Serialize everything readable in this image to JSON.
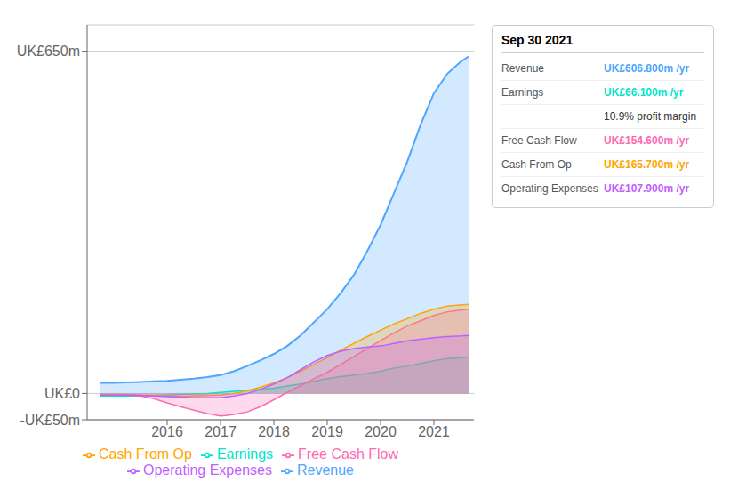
{
  "chart_data": {
    "type": "area",
    "title": "Sep 30 2021",
    "x": [
      2014.75,
      2015.0,
      2015.25,
      2015.5,
      2015.75,
      2016.0,
      2016.25,
      2016.5,
      2016.75,
      2017.0,
      2017.25,
      2017.5,
      2017.75,
      2018.0,
      2018.25,
      2018.5,
      2018.75,
      2019.0,
      2019.25,
      2019.5,
      2019.75,
      2020.0,
      2020.25,
      2020.5,
      2020.75,
      2021.0,
      2021.25,
      2021.5,
      2021.65
    ],
    "series": [
      {
        "name": "Revenue",
        "color": "#4da6ff",
        "values": [
          20,
          20,
          21,
          22,
          23,
          24,
          26,
          28,
          31,
          35,
          42,
          52,
          63,
          75,
          90,
          110,
          135,
          160,
          190,
          225,
          270,
          320,
          380,
          440,
          510,
          570,
          607,
          630,
          640
        ]
      },
      {
        "name": "Earnings",
        "color": "#00e5cc",
        "values": [
          -5,
          -5,
          -5,
          -5,
          -4,
          -3,
          -2,
          -1,
          0,
          2,
          4,
          6,
          8,
          10,
          14,
          18,
          23,
          28,
          32,
          35,
          38,
          42,
          48,
          52,
          57,
          62,
          66,
          68,
          69
        ]
      },
      {
        "name": "Free Cash Flow",
        "color": "#ff69b4",
        "values": [
          -2,
          -2,
          -3,
          -5,
          -10,
          -18,
          -25,
          -32,
          -38,
          -43,
          -40,
          -35,
          -25,
          -12,
          2,
          15,
          28,
          40,
          55,
          70,
          85,
          100,
          115,
          128,
          138,
          148,
          155,
          158,
          160
        ]
      },
      {
        "name": "Cash From Op",
        "color": "#ffa500",
        "values": [
          -2,
          -2,
          -2,
          -3,
          -4,
          -5,
          -6,
          -5,
          -4,
          -3,
          0,
          5,
          12,
          20,
          30,
          42,
          55,
          68,
          82,
          95,
          108,
          120,
          132,
          142,
          152,
          160,
          166,
          168,
          169
        ]
      },
      {
        "name": "Operating Expenses",
        "color": "#bf5fff",
        "values": [
          -3,
          -3,
          -3,
          -4,
          -5,
          -6,
          -7,
          -8,
          -8,
          -8,
          -5,
          0,
          8,
          18,
          30,
          45,
          60,
          72,
          80,
          85,
          88,
          90,
          95,
          100,
          103,
          106,
          108,
          109,
          110
        ]
      }
    ],
    "xlim": [
      2014.5,
      2021.75
    ],
    "xticks": [
      2016,
      2017,
      2018,
      2019,
      2020,
      2021
    ],
    "ylim": [
      -50,
      700
    ],
    "yticks": [
      {
        "value": -50,
        "label": "-UK£50m"
      },
      {
        "value": 0,
        "label": "UK£0"
      },
      {
        "value": 650,
        "label": "UK£650m"
      }
    ],
    "grid": true,
    "legend": "bottom",
    "annotations": [
      {
        "label": "Revenue",
        "text": "UK£606.800m /yr",
        "color": "#4da6ff"
      },
      {
        "label": "Earnings",
        "text": "UK£66.100m /yr",
        "color": "#00e5cc"
      },
      {
        "text": "10.9% profit margin"
      },
      {
        "label": "Free Cash Flow",
        "text": "UK£154.600m /yr",
        "color": "#ff69b4"
      },
      {
        "label": "Cash From Op",
        "text": "UK£165.700m /yr",
        "color": "#ffa500"
      },
      {
        "label": "Operating Expenses",
        "text": "UK£107.900m /yr",
        "color": "#bf5fff"
      }
    ]
  }
}
